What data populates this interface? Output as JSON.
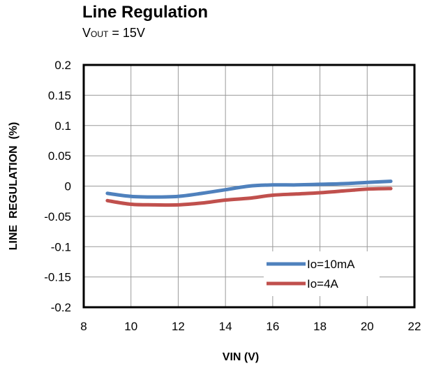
{
  "chart_data": {
    "type": "line",
    "title": "Line Regulation",
    "subtitle": {
      "prefix": "V",
      "subscript": "OUT",
      "suffix": " = 15V"
    },
    "xlabel": "VIN (V)",
    "ylabel": "LINE  REGULATION  (%)",
    "xlim": [
      8,
      22
    ],
    "ylim": [
      -0.2,
      0.2
    ],
    "xticks": [
      "8",
      "10",
      "12",
      "14",
      "16",
      "18",
      "20",
      "22"
    ],
    "yticks": [
      "0.2",
      "0.15",
      "0.1",
      "0.05",
      "0",
      "-0.05",
      "-0.1",
      "-0.15",
      "-0.2"
    ],
    "grid": true,
    "legend_position": "bottom-right",
    "series": [
      {
        "name": "Io=10mA",
        "color": "#4F81BD",
        "x": [
          9,
          10,
          11,
          12,
          13,
          14,
          15,
          16,
          17,
          18,
          19,
          20,
          21
        ],
        "y": [
          -0.012,
          -0.017,
          -0.018,
          -0.017,
          -0.012,
          -0.006,
          0.0,
          0.002,
          0.002,
          0.003,
          0.004,
          0.006,
          0.008
        ]
      },
      {
        "name": "Io=4A",
        "color": "#C0504D",
        "x": [
          9,
          10,
          11,
          12,
          13,
          14,
          15,
          16,
          17,
          18,
          19,
          20,
          21
        ],
        "y": [
          -0.024,
          -0.03,
          -0.031,
          -0.031,
          -0.028,
          -0.023,
          -0.02,
          -0.015,
          -0.013,
          -0.011,
          -0.008,
          -0.005,
          -0.004
        ]
      }
    ]
  }
}
